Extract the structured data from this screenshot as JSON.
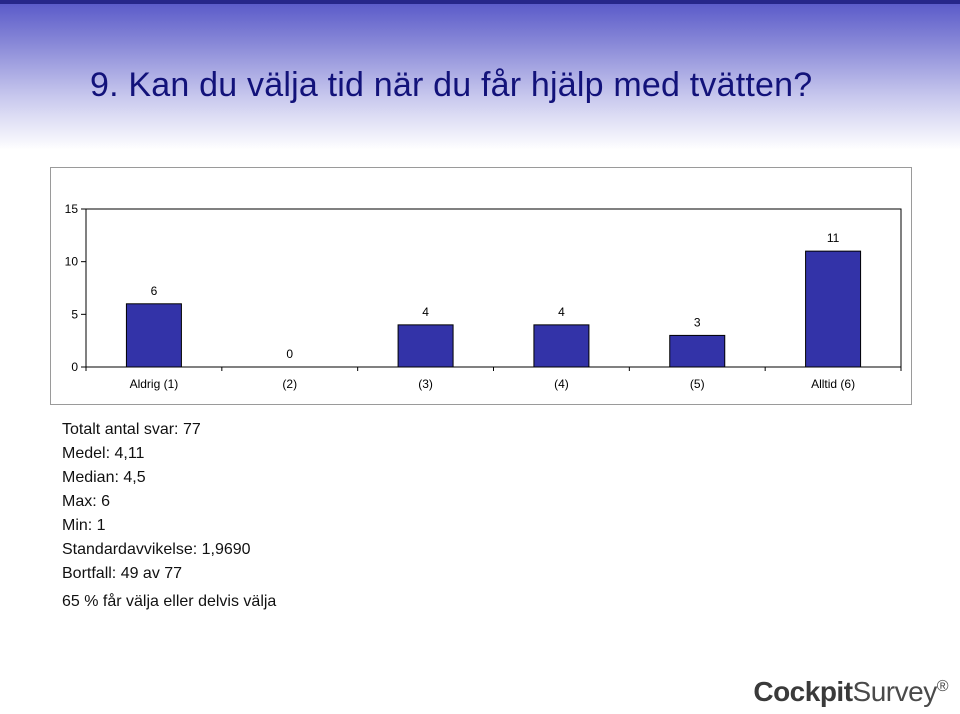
{
  "slide": {
    "title": "9. Kan du välja tid när du får hjälp med tvätten?"
  },
  "chart_data": {
    "type": "bar",
    "categories": [
      "Aldrig (1)",
      "(2)",
      "(3)",
      "(4)",
      "(5)",
      "Alltid (6)"
    ],
    "values": [
      6,
      0,
      4,
      4,
      3,
      11
    ],
    "data_labels": [
      "6",
      "0",
      "4",
      "4",
      "3",
      "11"
    ],
    "yticks": [
      "0",
      "5",
      "10",
      "15"
    ],
    "ylim": [
      0,
      15
    ],
    "title": "",
    "xlabel": "",
    "ylabel": "",
    "grid": false,
    "legend": "none",
    "bar_color": "#3333a8"
  },
  "stats": {
    "total": "Totalt antal svar: 77",
    "mean": "Medel: 4,11",
    "median": "Median: 4,5",
    "max": "Max: 6",
    "min": "Min: 1",
    "stddev": "Standardavvikelse: 1,9690",
    "dropout": "Bortfall: 49 av 77",
    "summary": "65 % får välja eller delvis välja"
  },
  "logo": {
    "bold": "Cockpit",
    "regular": "Survey",
    "mark": "®"
  }
}
